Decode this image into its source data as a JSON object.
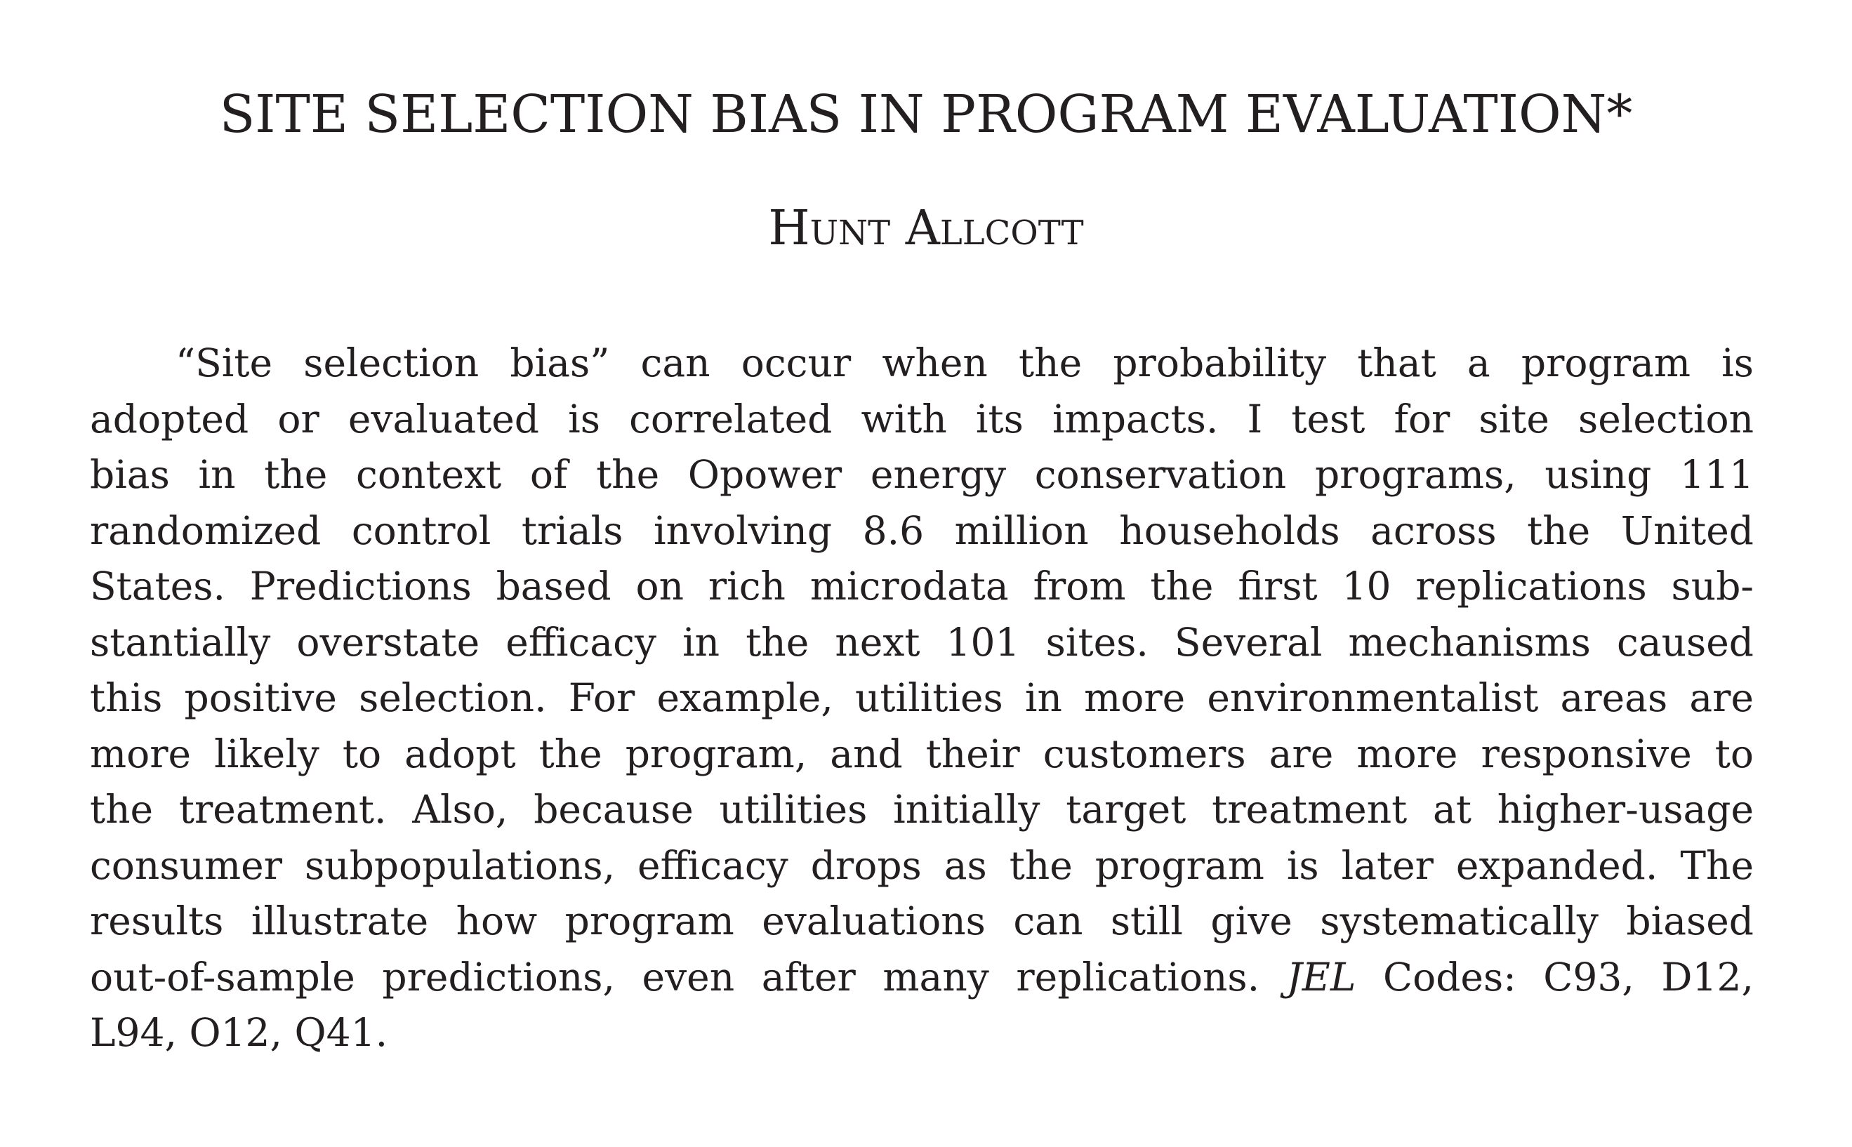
{
  "paper": {
    "title": "SITE SELECTION BIAS IN PROGRAM EVALUATION*",
    "author": "Hunt Allcott",
    "abstract_lines": [
      "“Site selection bias” can occur when the probability that a program is",
      "adopted or evaluated is correlated with its impacts. I test for site selection",
      "bias in the context of the Opower energy conservation programs, using 111",
      "randomized control trials involving 8.6 million households across the United",
      "States. Predictions based on rich microdata from the first 10 replications sub-",
      "stantially overstate efficacy in the next 101 sites. Several mechanisms caused",
      "this positive selection. For example, utilities in more environmentalist areas are",
      "more likely to adopt the program, and their customers are more responsive to",
      "the treatment. Also, because utilities initially target treatment at higher-usage",
      "consumer subpopulations, efficacy drops as the program is later expanded. The",
      "results illustrate how program evaluations can still give systematically biased"
    ],
    "jel_line_prefix": "out-of-sample predictions, even after many replications.",
    "jel_label": "JEL",
    "jel_line_suffix": "Codes: C93, D12,",
    "final_line": "L94, O12, Q41."
  }
}
